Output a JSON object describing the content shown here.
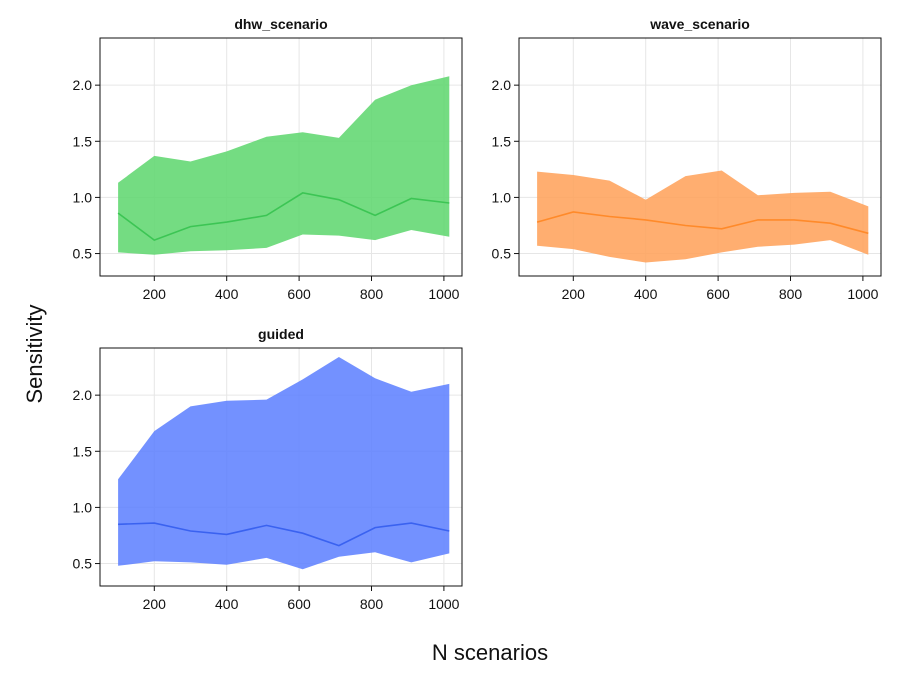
{
  "figure": {
    "xlabel": "N scenarios",
    "ylabel": "Sensitivity"
  },
  "chart_data": [
    {
      "type": "area",
      "title": "dhw_scenario",
      "color": "#5cd66c",
      "line_color": "#3cc554",
      "xlim": [
        50,
        1050
      ],
      "ylim": [
        0.3,
        2.42
      ],
      "xticks": [
        200,
        400,
        600,
        800,
        1000
      ],
      "xtick_labels": [
        "200",
        "400",
        "600",
        "800",
        "1000"
      ],
      "yticks": [
        0.5,
        1.0,
        1.5,
        2.0
      ],
      "ytick_labels": [
        "0.5",
        "1.0",
        "1.5",
        "2.0"
      ],
      "x": [
        100,
        200,
        300,
        400,
        510,
        610,
        710,
        810,
        910,
        1015
      ],
      "upper": [
        1.13,
        1.37,
        1.32,
        1.41,
        1.54,
        1.58,
        1.53,
        1.87,
        2.0,
        2.08
      ],
      "median": [
        0.86,
        0.62,
        0.74,
        0.78,
        0.84,
        1.04,
        0.98,
        0.84,
        0.99,
        0.95
      ],
      "lower": [
        0.51,
        0.49,
        0.52,
        0.53,
        0.55,
        0.67,
        0.66,
        0.62,
        0.71,
        0.65
      ]
    },
    {
      "type": "area",
      "title": "wave_scenario",
      "color": "#ffa057",
      "line_color": "#ff8a2a",
      "xlim": [
        50,
        1050
      ],
      "ylim": [
        0.3,
        2.42
      ],
      "xticks": [
        200,
        400,
        600,
        800,
        1000
      ],
      "xtick_labels": [
        "200",
        "400",
        "600",
        "800",
        "1000"
      ],
      "yticks": [
        0.5,
        1.0,
        1.5,
        2.0
      ],
      "ytick_labels": [
        "0.5",
        "1.0",
        "1.5",
        "2.0"
      ],
      "x": [
        100,
        200,
        300,
        400,
        510,
        610,
        710,
        810,
        910,
        1015
      ],
      "upper": [
        1.23,
        1.2,
        1.15,
        0.98,
        1.19,
        1.24,
        1.02,
        1.04,
        1.05,
        0.92
      ],
      "median": [
        0.78,
        0.87,
        0.83,
        0.8,
        0.75,
        0.72,
        0.8,
        0.8,
        0.77,
        0.68
      ],
      "lower": [
        0.57,
        0.54,
        0.47,
        0.42,
        0.45,
        0.51,
        0.56,
        0.58,
        0.62,
        0.49
      ]
    },
    {
      "type": "area",
      "title": "guided",
      "color": "#5a7eff",
      "line_color": "#3a62f0",
      "xlim": [
        50,
        1050
      ],
      "ylim": [
        0.3,
        2.42
      ],
      "xticks": [
        200,
        400,
        600,
        800,
        1000
      ],
      "xtick_labels": [
        "200",
        "400",
        "600",
        "800",
        "1000"
      ],
      "yticks": [
        0.5,
        1.0,
        1.5,
        2.0
      ],
      "ytick_labels": [
        "0.5",
        "1.0",
        "1.5",
        "2.0"
      ],
      "x": [
        100,
        200,
        300,
        400,
        510,
        610,
        710,
        810,
        910,
        1015
      ],
      "upper": [
        1.25,
        1.68,
        1.9,
        1.95,
        1.96,
        2.14,
        2.34,
        2.15,
        2.03,
        2.1
      ],
      "median": [
        0.85,
        0.86,
        0.79,
        0.76,
        0.84,
        0.77,
        0.66,
        0.82,
        0.86,
        0.79
      ],
      "lower": [
        0.48,
        0.52,
        0.51,
        0.49,
        0.55,
        0.45,
        0.56,
        0.6,
        0.51,
        0.59
      ]
    }
  ]
}
